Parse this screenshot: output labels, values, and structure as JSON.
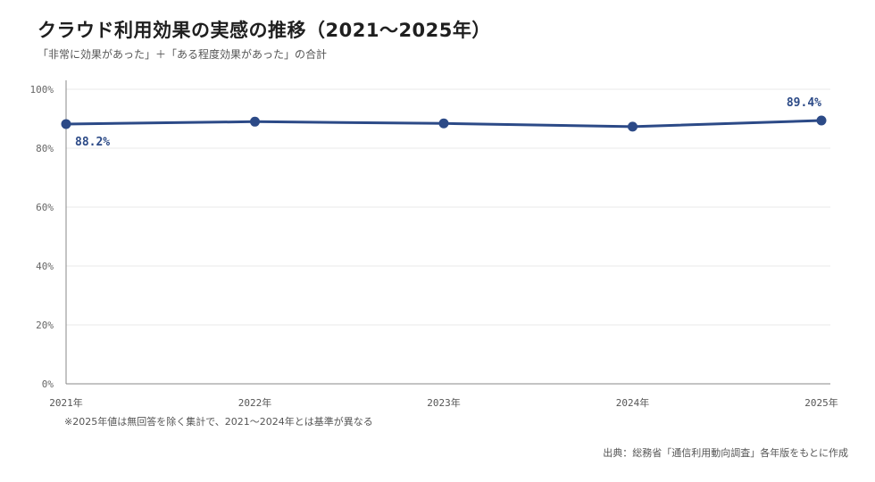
{
  "header": {
    "title": "クラウド利用効果の実感の推移（2021〜2025年）",
    "subtitle": "「非常に効果があった」＋「ある程度効果があった」の合計"
  },
  "chart_data": {
    "type": "line",
    "categories": [
      "2021年",
      "2022年",
      "2023年",
      "2024年",
      "2025年"
    ],
    "series": [
      {
        "values": [
          88.2,
          89.0,
          88.4,
          87.3,
          89.4
        ],
        "color": "#2c4a87"
      }
    ],
    "data_labels": [
      {
        "index": 0,
        "text": "88.2%",
        "position": "below"
      },
      {
        "index": 4,
        "text": "89.4%",
        "position": "above"
      }
    ],
    "y_ticks": [
      "0%",
      "20%",
      "40%",
      "60%",
      "80%",
      "100%"
    ],
    "ylim": [
      0,
      100
    ],
    "grid": true,
    "axis_color": "#888888",
    "grid_color": "#e8e8e8"
  },
  "footer": {
    "note": "※2025年値は無回答を除く集計で、2021〜2024年とは基準が異なる",
    "source": "出典：総務省「通信利用動向調査」各年版をもとに作成"
  }
}
